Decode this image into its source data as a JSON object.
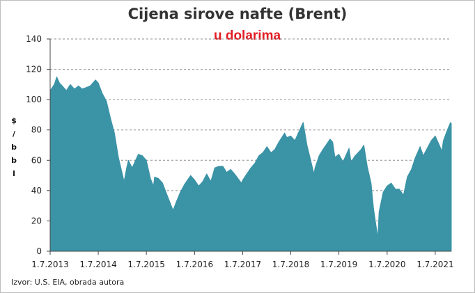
{
  "chart_data": {
    "type": "area",
    "title": "Cijena sirove nafte (Brent)",
    "subtitle": "u dolarima",
    "ylabel": "$/bbl",
    "source": "Izvor: U.S. EIA, obrada autora",
    "ylim": [
      0,
      140
    ],
    "yticks": [
      "0",
      "20",
      "40",
      "60",
      "80",
      "100",
      "120",
      "140"
    ],
    "xlim": [
      "2013-07-01",
      "2021-10-31"
    ],
    "xticks": [
      {
        "date": "2013-07-01",
        "label": "1.7.2013"
      },
      {
        "date": "2014-07-01",
        "label": "1.7.2014"
      },
      {
        "date": "2015-07-01",
        "label": "1.7.2015"
      },
      {
        "date": "2016-07-01",
        "label": "1.7.2016"
      },
      {
        "date": "2017-07-01",
        "label": "1.7.2017"
      },
      {
        "date": "2018-07-01",
        "label": "1.7.2018"
      },
      {
        "date": "2019-07-01",
        "label": "1.7.2019"
      },
      {
        "date": "2020-07-01",
        "label": "1.7.2020"
      },
      {
        "date": "2021-07-01",
        "label": "1.7.2021"
      }
    ],
    "grid": "horizontal dashed",
    "color": "#3b93a6",
    "series": [
      {
        "points": [
          [
            "2013-07-01",
            106
          ],
          [
            "2013-08-01",
            110
          ],
          [
            "2013-08-20",
            115
          ],
          [
            "2013-09-10",
            111
          ],
          [
            "2013-10-01",
            109
          ],
          [
            "2013-11-01",
            106
          ],
          [
            "2013-12-01",
            110
          ],
          [
            "2014-01-01",
            107
          ],
          [
            "2014-02-01",
            109
          ],
          [
            "2014-03-01",
            107
          ],
          [
            "2014-04-01",
            108
          ],
          [
            "2014-05-01",
            109
          ],
          [
            "2014-06-10",
            113
          ],
          [
            "2014-07-01",
            111
          ],
          [
            "2014-08-01",
            104
          ],
          [
            "2014-09-01",
            99
          ],
          [
            "2014-10-01",
            88
          ],
          [
            "2014-11-01",
            78
          ],
          [
            "2014-12-01",
            62
          ],
          [
            "2015-01-13",
            46
          ],
          [
            "2015-02-01",
            55
          ],
          [
            "2015-02-15",
            60
          ],
          [
            "2015-03-15",
            55
          ],
          [
            "2015-05-01",
            64
          ],
          [
            "2015-06-01",
            63
          ],
          [
            "2015-07-01",
            60
          ],
          [
            "2015-08-01",
            48
          ],
          [
            "2015-08-24",
            43
          ],
          [
            "2015-09-01",
            49
          ],
          [
            "2015-10-01",
            48
          ],
          [
            "2015-11-01",
            45
          ],
          [
            "2015-12-01",
            38
          ],
          [
            "2016-01-20",
            27
          ],
          [
            "2016-02-15",
            33
          ],
          [
            "2016-03-15",
            39
          ],
          [
            "2016-04-15",
            44
          ],
          [
            "2016-06-01",
            50
          ],
          [
            "2016-07-01",
            47
          ],
          [
            "2016-08-01",
            43
          ],
          [
            "2016-09-01",
            46
          ],
          [
            "2016-10-01",
            51
          ],
          [
            "2016-11-01",
            46
          ],
          [
            "2016-12-01",
            55
          ],
          [
            "2017-01-01",
            56
          ],
          [
            "2017-02-01",
            56
          ],
          [
            "2017-03-01",
            52
          ],
          [
            "2017-04-01",
            54
          ],
          [
            "2017-05-01",
            51
          ],
          [
            "2017-06-21",
            45
          ],
          [
            "2017-07-01",
            47
          ],
          [
            "2017-08-01",
            51
          ],
          [
            "2017-09-01",
            55
          ],
          [
            "2017-10-01",
            58
          ],
          [
            "2017-11-01",
            63
          ],
          [
            "2017-12-01",
            65
          ],
          [
            "2018-01-01",
            69
          ],
          [
            "2018-02-01",
            65
          ],
          [
            "2018-03-01",
            67
          ],
          [
            "2018-04-01",
            72
          ],
          [
            "2018-05-15",
            78
          ],
          [
            "2018-06-01",
            75
          ],
          [
            "2018-07-01",
            76
          ],
          [
            "2018-08-01",
            73
          ],
          [
            "2018-09-01",
            79
          ],
          [
            "2018-10-03",
            85
          ],
          [
            "2018-11-01",
            70
          ],
          [
            "2018-12-24",
            51
          ],
          [
            "2019-01-01",
            55
          ],
          [
            "2019-02-01",
            63
          ],
          [
            "2019-03-01",
            67
          ],
          [
            "2019-04-25",
            74
          ],
          [
            "2019-05-15",
            72
          ],
          [
            "2019-06-01",
            62
          ],
          [
            "2019-07-01",
            64
          ],
          [
            "2019-08-01",
            59
          ],
          [
            "2019-09-16",
            68
          ],
          [
            "2019-10-01",
            59
          ],
          [
            "2019-11-01",
            63
          ],
          [
            "2019-12-15",
            67
          ],
          [
            "2020-01-06",
            70
          ],
          [
            "2020-02-01",
            56
          ],
          [
            "2020-03-01",
            45
          ],
          [
            "2020-03-20",
            28
          ],
          [
            "2020-04-21",
            9
          ],
          [
            "2020-05-01",
            26
          ],
          [
            "2020-06-01",
            39
          ],
          [
            "2020-07-01",
            43
          ],
          [
            "2020-08-01",
            45
          ],
          [
            "2020-09-01",
            41
          ],
          [
            "2020-10-01",
            41
          ],
          [
            "2020-11-02",
            37
          ],
          [
            "2020-12-01",
            49
          ],
          [
            "2021-01-01",
            54
          ],
          [
            "2021-02-01",
            62
          ],
          [
            "2021-03-08",
            69
          ],
          [
            "2021-04-01",
            63
          ],
          [
            "2021-05-01",
            68
          ],
          [
            "2021-06-01",
            73
          ],
          [
            "2021-07-01",
            76
          ],
          [
            "2021-08-01",
            70
          ],
          [
            "2021-08-20",
            66
          ],
          [
            "2021-09-01",
            73
          ],
          [
            "2021-10-01",
            80
          ],
          [
            "2021-10-25",
            85
          ],
          [
            "2021-10-31",
            84
          ]
        ]
      }
    ]
  }
}
